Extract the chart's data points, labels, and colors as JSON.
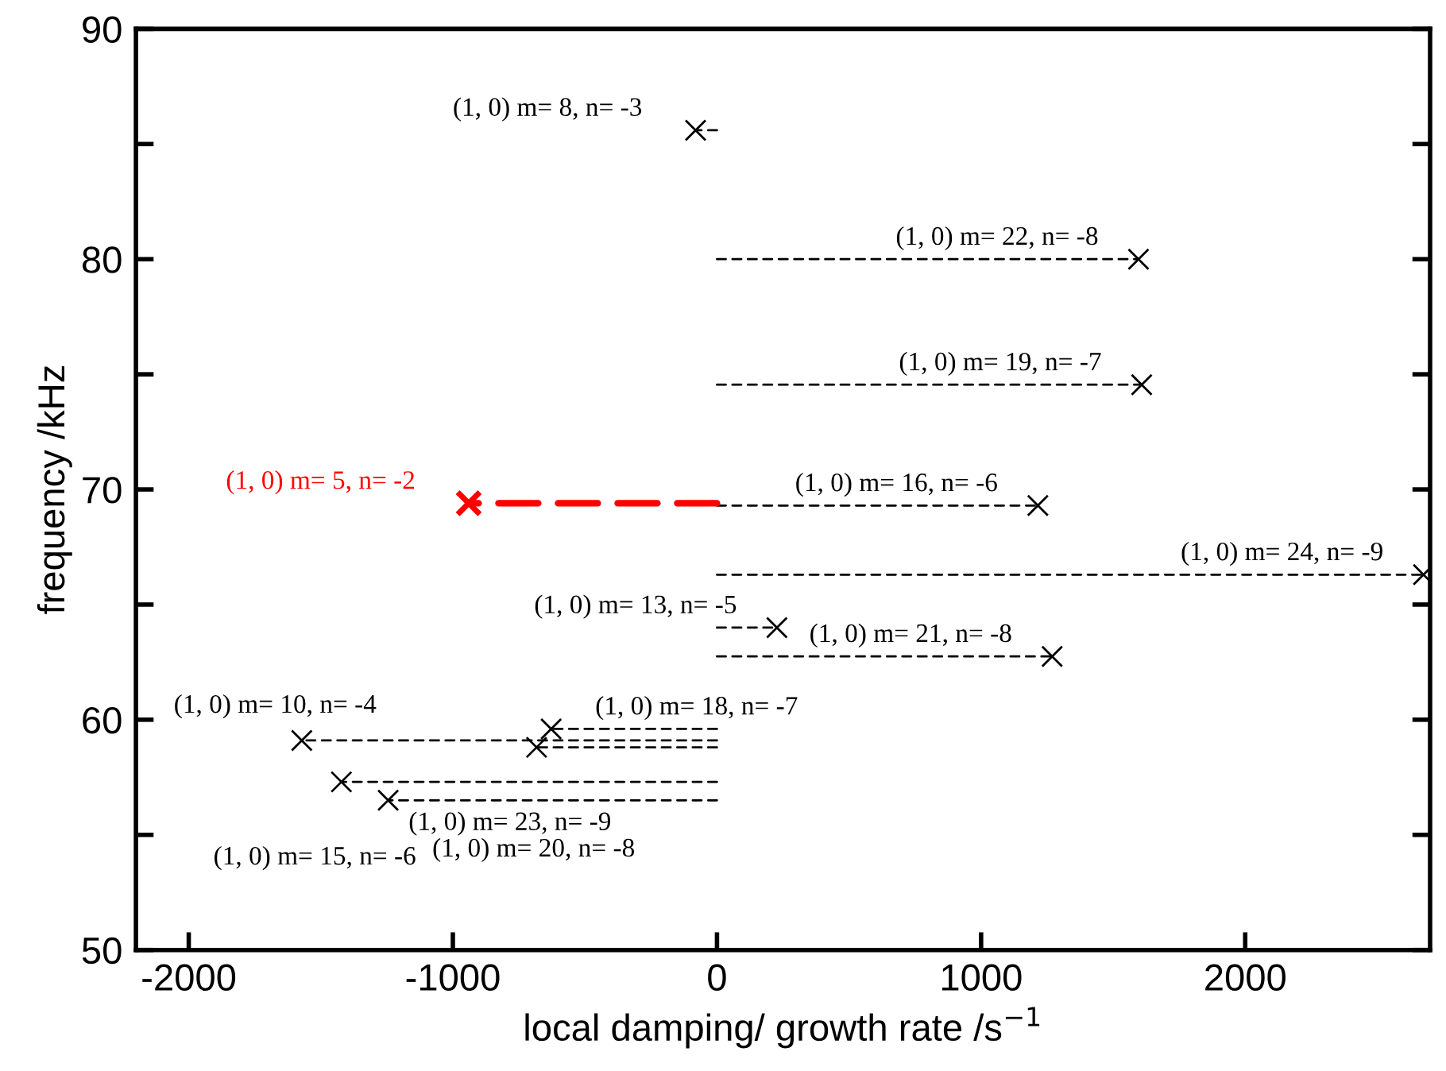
{
  "chart_data": {
    "type": "scatter",
    "xlabel": "local damping/ growth rate /s$^{−1}$",
    "ylabel": "frequency /kHz",
    "xlim": [
      -2200,
      2700
    ],
    "ylim": [
      50,
      90
    ],
    "xticks": [
      -2000,
      -1000,
      0,
      1000,
      2000
    ],
    "yticks": [
      50,
      {
        "value": 55,
        "label": null
      },
      60,
      {
        "value": 65,
        "label": null
      },
      70,
      {
        "value": 75,
        "label": null
      },
      80,
      {
        "value": 85,
        "label": null
      },
      90
    ],
    "grid": false,
    "legend": false,
    "series": [
      {
        "type": "line",
        "color": "#000000",
        "line_style": "dashed",
        "marker": "none",
        "x": [
          0,
          -81,
          null,
          0,
          1596,
          null,
          0,
          1608,
          null,
          0,
          1215,
          null,
          0,
          2675,
          null,
          0,
          227,
          null,
          0,
          1269,
          null,
          0,
          -1572,
          null,
          0,
          -628,
          null,
          0,
          -683,
          null,
          0,
          -1422,
          null,
          0,
          -1245
        ],
        "values": [
          85.6,
          85.6,
          null,
          80.0,
          80.0,
          null,
          74.55,
          74.55,
          null,
          69.3,
          69.3,
          null,
          66.3,
          66.3,
          null,
          64.0,
          64.0,
          null,
          62.75,
          62.75,
          null,
          59.1,
          59.1,
          null,
          59.6,
          59.6,
          null,
          58.8,
          58.8,
          null,
          57.3,
          57.3,
          null,
          56.5,
          56.5
        ]
      },
      {
        "type": "line",
        "color": "#ff0000",
        "line_style": "dashed",
        "marker": "none",
        "x": [
          0,
          -940
        ],
        "values": [
          69.4,
          69.4
        ]
      },
      {
        "marker": "cross",
        "x": [
          -81,
          1596,
          1608,
          -940,
          1215,
          2675,
          227,
          1269,
          -1572,
          -628,
          -683,
          -1422,
          -1245
        ],
        "values": [
          85.6,
          80.0,
          74.55,
          69.4,
          69.3,
          66.3,
          64.0,
          62.75,
          59.1,
          59.6,
          58.8,
          57.3,
          56.5
        ],
        "colors": [
          "#000000",
          "#000000",
          "#000000",
          "#ff0000",
          "#000000",
          "#000000",
          "#000000",
          "#000000",
          "#000000",
          "#000000",
          "#000000",
          "#000000",
          "#000000"
        ]
      }
    ],
    "annotations": [
      {
        "text": "(1, 0) m= 8, n= -3",
        "x": -81,
        "y": 85.6
      },
      {
        "text": "(1, 0) m= 22, n= -8",
        "x": 1596,
        "y": 80.0
      },
      {
        "text": "(1, 0) m= 19, n= -7",
        "x": 1608,
        "y": 74.55
      },
      {
        "text": "(1, 0) m= 5, n= -2",
        "x": -940,
        "y": 69.4
      },
      {
        "text": "(1, 0) m= 16, n= -6",
        "x": 1215,
        "y": 69.3
      },
      {
        "text": "(1, 0) m= 24, n= -9",
        "x": 2675,
        "y": 66.3
      },
      {
        "text": "(1, 0) m= 13, n= -5",
        "x": 227,
        "y": 64.0
      },
      {
        "text": "(1, 0) m= 21, n= -8",
        "x": 1269,
        "y": 62.75
      },
      {
        "text": "(1, 0) m= 10, n= -4",
        "x": -1572,
        "y": 59.1
      },
      {
        "text": "(1, 0) m= 18, n= -7",
        "x": -628,
        "y": 59.6
      },
      {
        "text": "(1, 0) m= 23, n= -9",
        "x": -683,
        "y": 58.8
      },
      {
        "text": "(1, 0) m= 15, n= -6",
        "x": -1422,
        "y": 57.3
      },
      {
        "text": "(1, 0) m= 20, n= -8",
        "x": -1245,
        "y": 56.5
      }
    ]
  }
}
